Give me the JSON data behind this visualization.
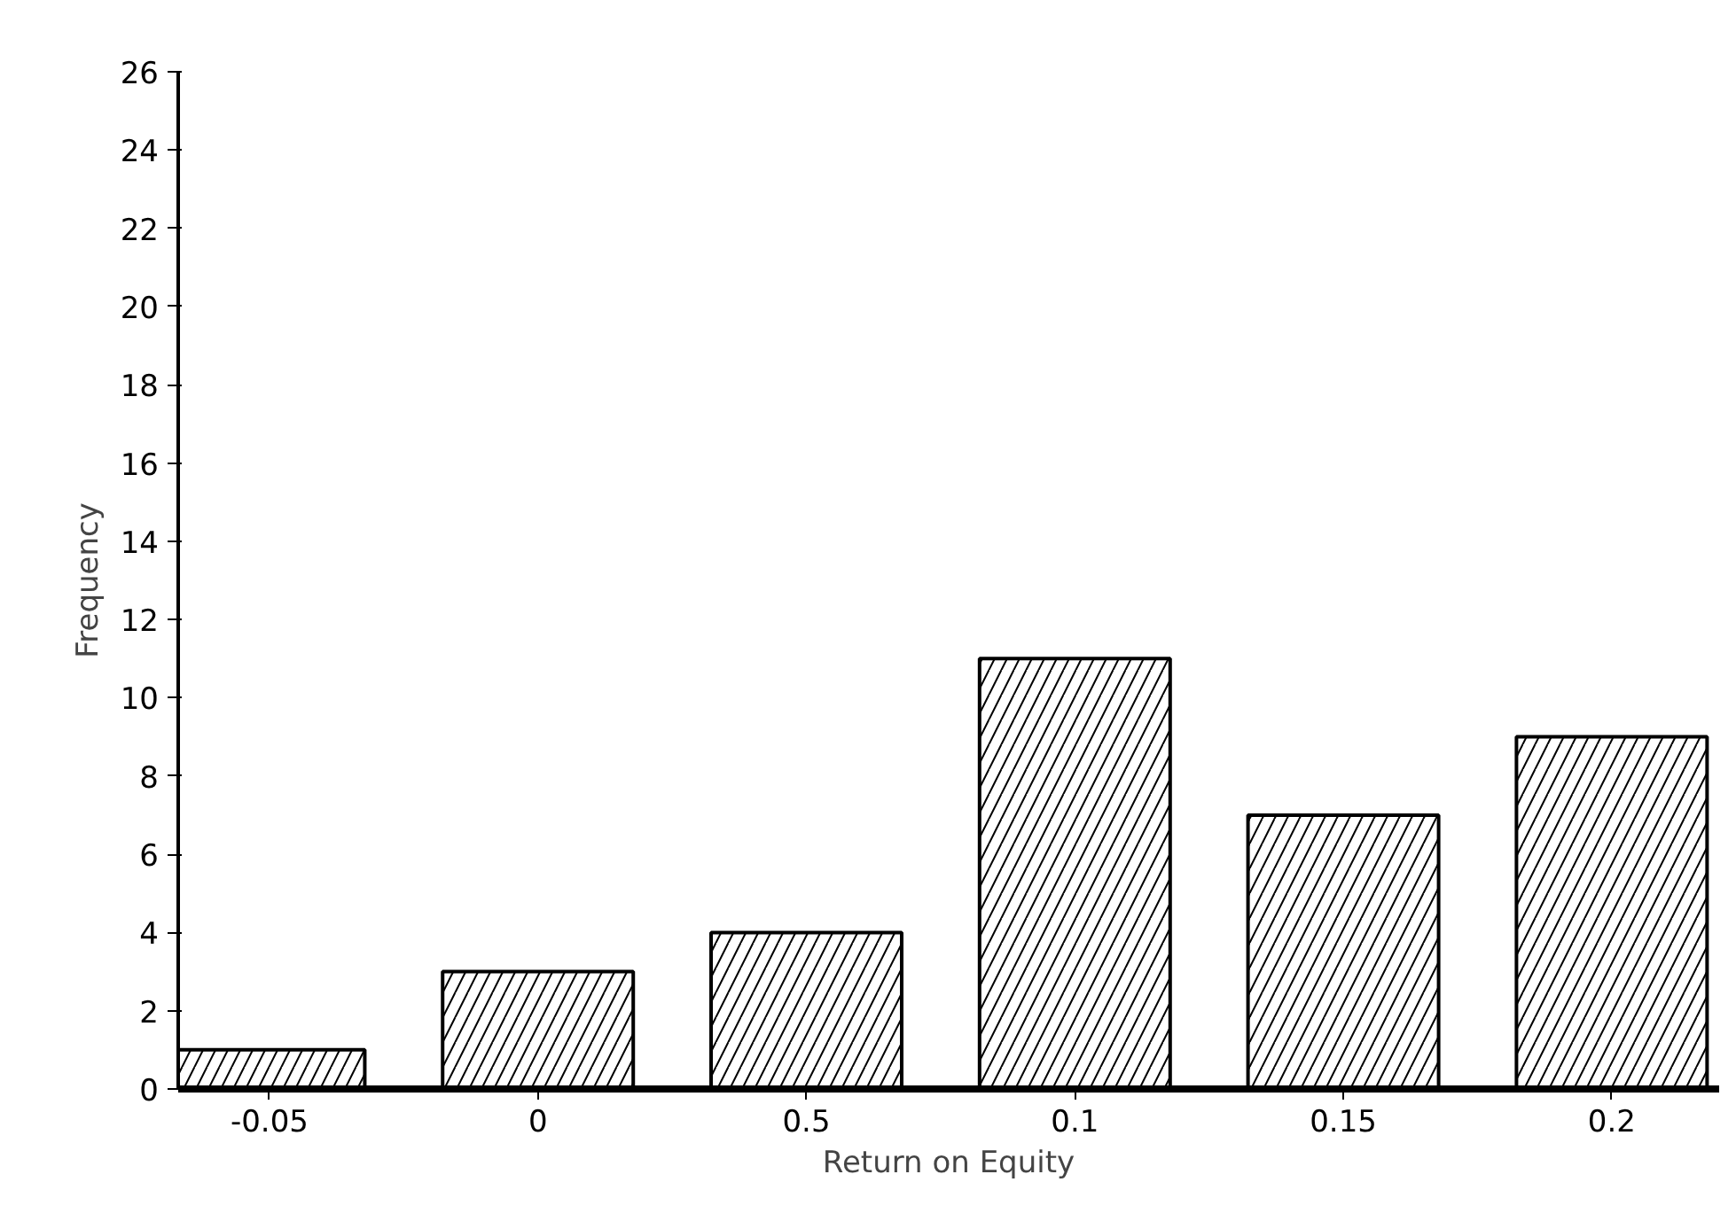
{
  "chart_data": {
    "type": "bar",
    "xlabel": "Return on Equity",
    "ylabel": "Frequency",
    "categories": [
      "-0.05",
      "0",
      "0.5",
      "0.1",
      "0.15",
      "0.2"
    ],
    "values": [
      1,
      3,
      4,
      11,
      7,
      9
    ],
    "color": "#000000",
    "ylim": [
      0,
      26
    ],
    "yticks": [
      0,
      2,
      4,
      6,
      8,
      10,
      12,
      14,
      16,
      18,
      20,
      22,
      24,
      26
    ],
    "grid": false
  }
}
